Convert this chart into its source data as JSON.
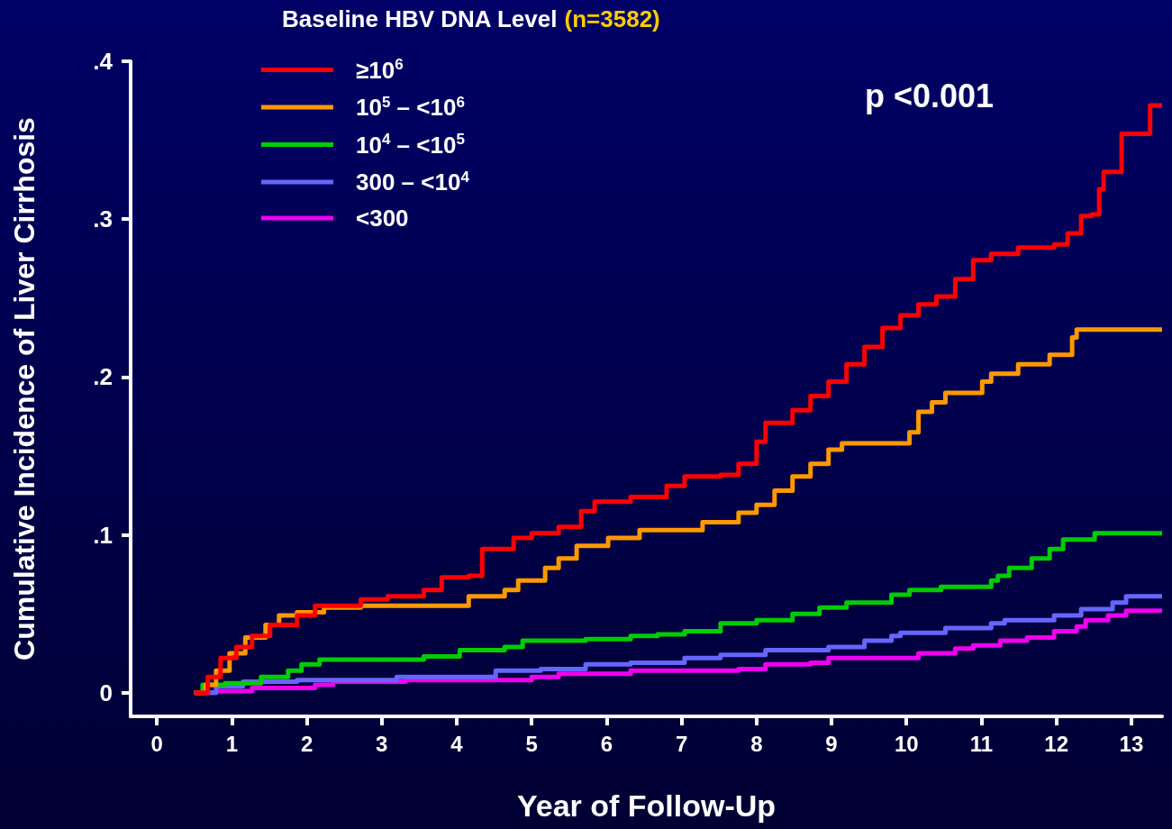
{
  "chart_data": {
    "type": "step",
    "xlabel": "Year of Follow-Up",
    "ylabel": "Cumulative Incidence of Liver Cirrhosis",
    "legend_title": "Baseline HBV DNA Level (n=3582)",
    "annotations": [
      "p <0.001"
    ],
    "xlim": [
      -0.35,
      13.41
    ],
    "xticks": [
      0,
      1,
      2,
      3,
      4,
      5,
      6,
      7,
      8,
      9,
      10,
      11,
      12,
      13
    ],
    "ylim": [
      -0.015,
      0.4
    ],
    "yticks": [
      0,
      {
        "value": 0.1,
        "label": ".1"
      },
      {
        "value": 0.2,
        "label": ".2"
      },
      {
        "value": 0.3,
        "label": ".3"
      },
      {
        "value": 0.4,
        "label": ".4"
      }
    ],
    "grid": false,
    "legend": "top left",
    "marker": "none",
    "line_style": "solid",
    "series": [
      {
        "name": "≥10$^{6}$",
        "color": "#ff0000",
        "x": [
          0.5,
          0.68,
          0.85,
          1.06,
          1.27,
          1.51,
          1.87,
          2.11,
          2.72,
          3.08,
          3.56,
          3.8,
          4.16,
          4.34,
          4.76,
          5,
          5.36,
          5.66,
          5.84,
          6.32,
          6.8,
          7.04,
          7.52,
          7.76,
          8,
          8.12,
          8.48,
          8.72,
          8.96,
          9.2,
          9.44,
          9.68,
          9.92,
          10.16,
          10.4,
          10.65,
          10.89,
          11.13,
          11.49,
          11.97,
          12.15,
          12.33,
          12.47,
          12.57,
          12.63,
          12.87,
          12.87,
          13.25,
          13.41
        ],
        "values": [
          0,
          0.01,
          0.022,
          0.029,
          0.036,
          0.043,
          0.049,
          0.055,
          0.059,
          0.061,
          0.065,
          0.073,
          0.074,
          0.091,
          0.098,
          0.101,
          0.105,
          0.115,
          0.121,
          0.124,
          0.131,
          0.137,
          0.138,
          0.145,
          0.159,
          0.171,
          0.179,
          0.188,
          0.197,
          0.208,
          0.219,
          0.231,
          0.239,
          0.246,
          0.251,
          0.262,
          0.274,
          0.278,
          0.282,
          0.284,
          0.291,
          0.302,
          0.303,
          0.319,
          0.33,
          0.334,
          0.354,
          0.372,
          0.372
        ]
      },
      {
        "name": "10$^{5}$ – <10$^{6}$",
        "color": "#ff9900",
        "x": [
          0.5,
          0.65,
          0.79,
          0.97,
          1.18,
          1.45,
          1.63,
          1.87,
          2.23,
          2.72,
          3.68,
          4.16,
          4.64,
          4.82,
          5.18,
          5.36,
          5.6,
          6.02,
          6.44,
          7.28,
          7.76,
          8,
          8.24,
          8.48,
          8.72,
          8.96,
          9.14,
          9.92,
          10.04,
          10.16,
          10.34,
          10.52,
          11.01,
          11.13,
          11.49,
          11.91,
          12.21,
          12.27,
          13.41
        ],
        "values": [
          0,
          0.005,
          0.014,
          0.025,
          0.035,
          0.043,
          0.049,
          0.051,
          0.054,
          0.055,
          0.055,
          0.061,
          0.065,
          0.071,
          0.079,
          0.085,
          0.093,
          0.098,
          0.103,
          0.108,
          0.114,
          0.119,
          0.128,
          0.137,
          0.145,
          0.154,
          0.158,
          0.158,
          0.165,
          0.178,
          0.184,
          0.19,
          0.197,
          0.202,
          0.208,
          0.214,
          0.225,
          0.23,
          0.23
        ]
      },
      {
        "name": "10$^{4}$ – <10$^{5}$",
        "color": "#00cc00",
        "x": [
          0.5,
          0.61,
          0.91,
          1.39,
          1.75,
          1.93,
          2.17,
          3.08,
          3.56,
          4.04,
          4.64,
          4.88,
          5.72,
          6.32,
          6.68,
          7.04,
          7.52,
          8,
          8.48,
          8.84,
          9.2,
          9.8,
          10.04,
          10.46,
          11.13,
          11.22,
          11.37,
          11.67,
          11.91,
          12.09,
          12.51,
          13.41
        ],
        "values": [
          0,
          0.005,
          0.006,
          0.01,
          0.014,
          0.018,
          0.021,
          0.021,
          0.023,
          0.027,
          0.029,
          0.033,
          0.034,
          0.036,
          0.037,
          0.039,
          0.044,
          0.046,
          0.05,
          0.054,
          0.057,
          0.062,
          0.065,
          0.067,
          0.071,
          0.074,
          0.079,
          0.085,
          0.091,
          0.097,
          0.101,
          0.101
        ]
      },
      {
        "name": "300 – <10$^{4}$",
        "color": "#6666ff",
        "x": [
          0.5,
          0.79,
          1.15,
          1.87,
          3.2,
          4.52,
          5.12,
          5.72,
          6.32,
          7.04,
          7.52,
          8.12,
          8.96,
          9.44,
          9.8,
          9.92,
          10.52,
          11.13,
          11.31,
          11.97,
          12.33,
          12.75,
          12.93,
          13.41
        ],
        "values": [
          0,
          0.004,
          0.007,
          0.008,
          0.01,
          0.014,
          0.015,
          0.018,
          0.019,
          0.022,
          0.024,
          0.027,
          0.029,
          0.033,
          0.036,
          0.038,
          0.041,
          0.044,
          0.046,
          0.049,
          0.053,
          0.057,
          0.061,
          0.061
        ]
      },
      {
        "name": "<300",
        "color": "#ee00ee",
        "x": [
          0.5,
          0.79,
          1.27,
          2.11,
          2.35,
          3.32,
          5,
          5.36,
          6.32,
          7.76,
          8.12,
          8.72,
          8.96,
          10.16,
          10.65,
          10.89,
          11.25,
          11.61,
          11.97,
          12.27,
          12.39,
          12.69,
          12.93,
          13.41
        ],
        "values": [
          0,
          0.001,
          0.003,
          0.005,
          0.007,
          0.008,
          0.01,
          0.012,
          0.014,
          0.015,
          0.018,
          0.019,
          0.022,
          0.025,
          0.028,
          0.03,
          0.033,
          0.035,
          0.039,
          0.042,
          0.046,
          0.049,
          0.052,
          0.052
        ]
      }
    ]
  }
}
